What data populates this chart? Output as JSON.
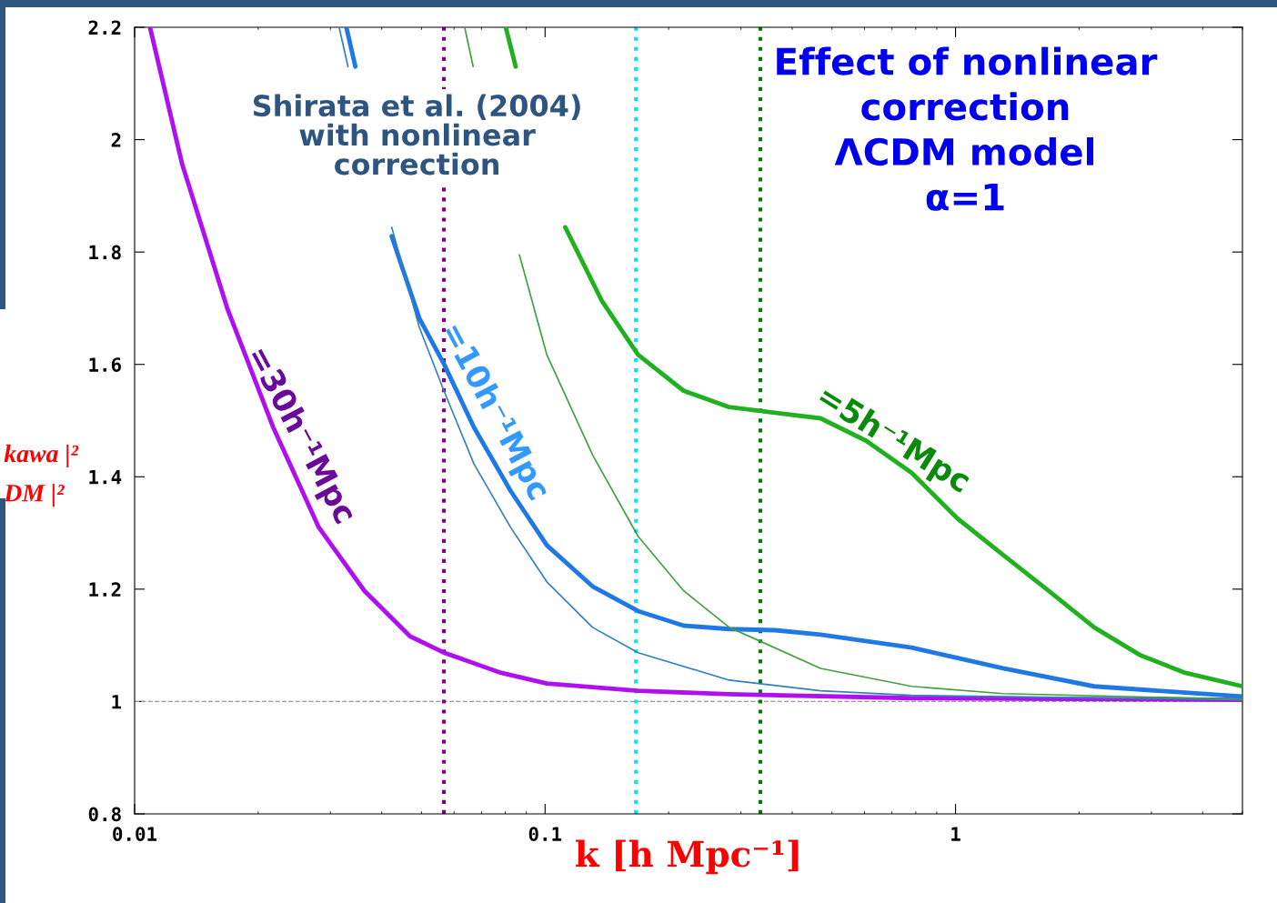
{
  "chart_data": {
    "type": "line",
    "title": "Effect of nonlinear\ncorrection\nΛCDM model\nα=1",
    "xlabel": "k [h Mpc⁻¹]",
    "log": "x",
    "xlim": [
      0.01,
      5
    ],
    "xticks": [
      {
        "value": 0.01,
        "label": "0.01"
      },
      {
        "value": 0.1,
        "label": "0.1"
      },
      {
        "value": 1,
        "label": "1"
      }
    ],
    "ylim": [
      0.8,
      2.2
    ],
    "yticks": [
      0.8,
      1,
      1.2,
      1.4,
      1.6,
      1.8,
      2,
      2.2
    ],
    "grid": false,
    "legend": false,
    "marker": "none",
    "line_style": "solid",
    "series": [
      {
        "color": "#b010f0",
        "x": [
          0.0109,
          0.01305,
          0.01685,
          0.02176,
          0.0281,
          0.0363,
          0.0469,
          0.0567,
          0.0782,
          0.101,
          0.1685,
          0.281,
          0.782,
          5
        ],
        "values": [
          2.2,
          1.957,
          1.698,
          1.488,
          1.31,
          1.197,
          1.116,
          1.087,
          1.051,
          1.032,
          1.019,
          1.013,
          1.006,
          1.003
        ]
      },
      {
        "color": "#1e78e6",
        "x": [
          0.0328,
          0.0345,
          0.0363,
          0.0423,
          0.0494,
          0.0567,
          0.0671,
          0.0824,
          0.101,
          0.1305,
          0.1685,
          0.2176,
          0.281,
          0.363,
          0.469,
          0.782,
          1.305,
          2.176,
          5
        ],
        "values": [
          2.2,
          2.13,
          null,
          1.828,
          1.682,
          1.601,
          1.488,
          1.375,
          1.278,
          1.205,
          1.161,
          1.135,
          1.129,
          1.127,
          1.119,
          1.096,
          1.059,
          1.027,
          1.009
        ]
      },
      {
        "color": "#3080c0",
        "x": [
          0.0315,
          0.0331,
          0.0363,
          0.0423,
          0.0494,
          0.0567,
          0.0671,
          0.0824,
          0.101,
          0.1305,
          0.1685,
          0.281,
          0.469,
          0.782,
          5
        ],
        "values": [
          2.2,
          2.13,
          null,
          1.844,
          1.666,
          1.553,
          1.423,
          1.31,
          1.213,
          1.132,
          1.087,
          1.038,
          1.019,
          1.011,
          1.003
        ]
      },
      {
        "color": "#40a040",
        "x": [
          0.0637,
          0.0668,
          0.0743,
          0.0866,
          0.101,
          0.1305,
          0.1685,
          0.2176,
          0.281,
          0.469,
          0.782,
          1.305,
          5
        ],
        "values": [
          2.2,
          2.13,
          null,
          1.795,
          1.617,
          1.439,
          1.294,
          1.197,
          1.132,
          1.059,
          1.027,
          1.014,
          1.004
        ]
      },
      {
        "color": "#20b020",
        "x": [
          0.0802,
          0.0848,
          0.0912,
          0.112,
          0.1373,
          0.1685,
          0.2176,
          0.281,
          0.382,
          0.469,
          0.606,
          0.782,
          1.01,
          1.305,
          1.685,
          2.176,
          2.81,
          3.63,
          5
        ],
        "values": [
          2.2,
          2.13,
          null,
          1.844,
          1.714,
          1.617,
          1.553,
          1.524,
          1.512,
          1.504,
          1.464,
          1.407,
          1.326,
          1.261,
          1.197,
          1.132,
          1.083,
          1.051,
          1.027
        ]
      }
    ],
    "ref_lines": [
      {
        "axis": "y",
        "value": 1,
        "color": "#999999",
        "line_style": "dashed"
      },
      {
        "axis": "x",
        "value": 0.0567,
        "color": "#800080",
        "line_style": "dotted"
      },
      {
        "axis": "x",
        "value": 0.1665,
        "color": "#00e5ff",
        "line_style": "dotted"
      },
      {
        "axis": "x",
        "value": 0.3345,
        "color": "#007a00",
        "line_style": "dotted"
      }
    ],
    "annotations": [
      "Shirata et al. (2004)\nwith nonlinear\ncorrection",
      "=30h⁻¹Mpc",
      "=10h⁻¹Mpc",
      "=5h⁻¹Mpc",
      "kawa |²",
      "DM |²"
    ]
  }
}
